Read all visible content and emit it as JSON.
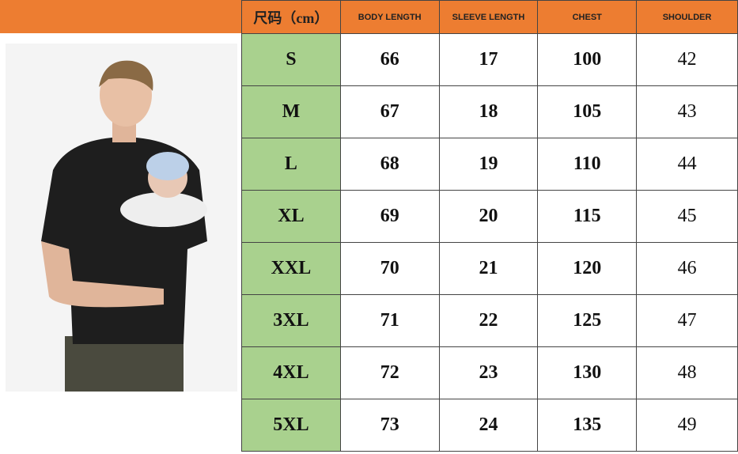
{
  "header": [
    "尺码（cm）",
    "BODY LENGTH",
    "SLEEVE LENGTH",
    "CHEST",
    "SHOULDER"
  ],
  "rows": [
    [
      "S",
      "66",
      "17",
      "100",
      "42"
    ],
    [
      "M",
      "67",
      "18",
      "105",
      "43"
    ],
    [
      "L",
      "68",
      "19",
      "110",
      "44"
    ],
    [
      "XL",
      "69",
      "20",
      "115",
      "45"
    ],
    [
      "XXL",
      "70",
      "21",
      "120",
      "46"
    ],
    [
      "3XL",
      "71",
      "22",
      "125",
      "47"
    ],
    [
      "4XL",
      "72",
      "23",
      "130",
      "48"
    ],
    [
      "5XL",
      "73",
      "24",
      "135",
      "49"
    ]
  ],
  "colors": {
    "header": "#ed7d31",
    "size_column": "#a9d18e"
  }
}
